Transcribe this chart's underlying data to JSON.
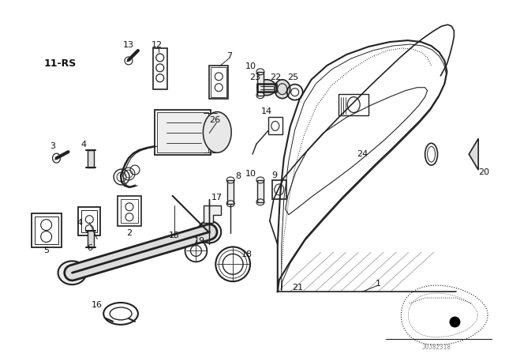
{
  "bg_color": "#ffffff",
  "fig_width": 6.4,
  "fig_height": 4.48,
  "dpi": 100,
  "line_color": "#222222",
  "text_color": "#111111",
  "watermark": "J0J82318"
}
